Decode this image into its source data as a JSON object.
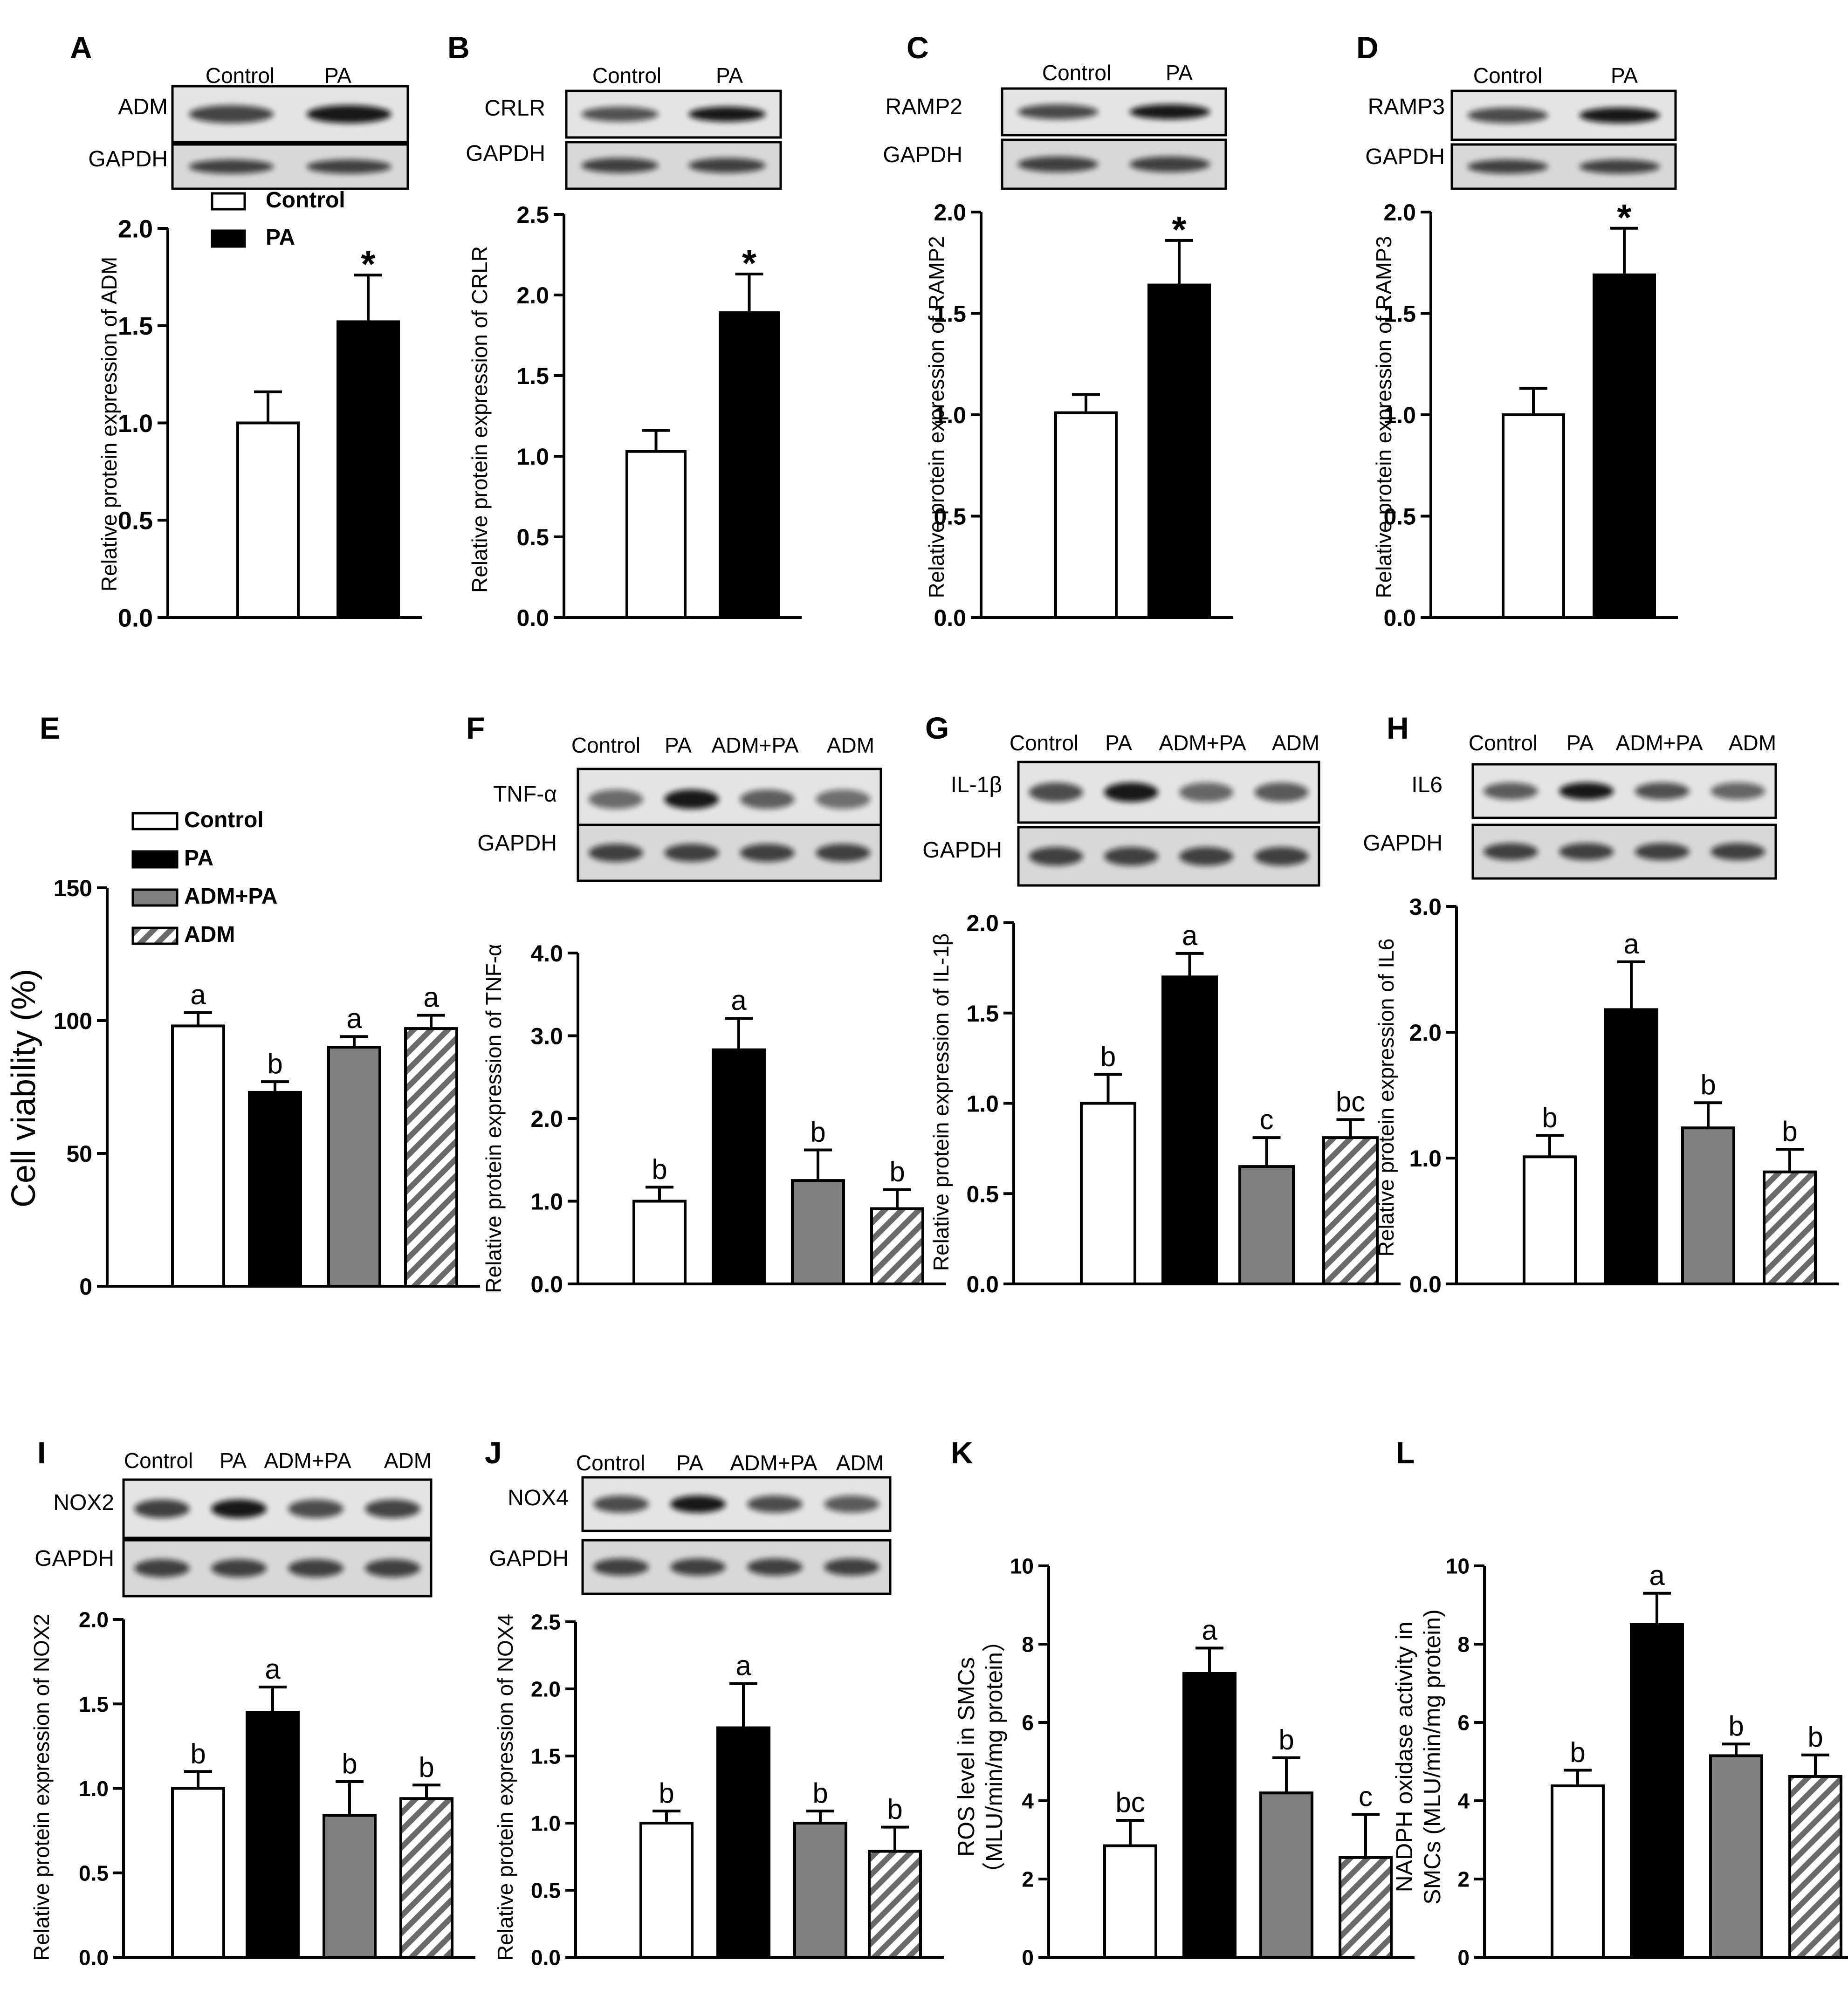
{
  "colors": {
    "control": "#ffffff",
    "pa": "#000000",
    "admpa": "#808080",
    "adm": "hatch",
    "axis": "#000000"
  },
  "chart_data": [
    {
      "panel": "A",
      "type": "bar",
      "categories": [
        "Control",
        "PA"
      ],
      "values": [
        1.0,
        1.52
      ],
      "errors": [
        0.16,
        0.24
      ],
      "letters": [
        "",
        "*"
      ],
      "ylabel": "Relative protein expression of ADM",
      "ylim": [
        0,
        2.0
      ],
      "yticks": [
        "0.0",
        "0.5",
        "1.0",
        "1.5",
        "2.0"
      ],
      "legend": [
        "Control",
        "PA"
      ],
      "blot": {
        "lanes": [
          "Control",
          "PA"
        ],
        "rows": [
          "ADM",
          "GAPDH"
        ]
      }
    },
    {
      "panel": "B",
      "type": "bar",
      "categories": [
        "Control",
        "PA"
      ],
      "values": [
        1.03,
        1.89
      ],
      "errors": [
        0.13,
        0.24
      ],
      "letters": [
        "",
        "*"
      ],
      "ylabel": "Relative protein expression of CRLR",
      "ylim": [
        0,
        2.5
      ],
      "yticks": [
        "0.0",
        "0.5",
        "1.0",
        "1.5",
        "2.0",
        "2.5"
      ],
      "blot": {
        "lanes": [
          "Control",
          "PA"
        ],
        "rows": [
          "CRLR",
          "GAPDH"
        ]
      }
    },
    {
      "panel": "C",
      "type": "bar",
      "categories": [
        "Control",
        "PA"
      ],
      "values": [
        1.01,
        1.64
      ],
      "errors": [
        0.09,
        0.22
      ],
      "letters": [
        "",
        "*"
      ],
      "ylabel": "Relative protein expression of RAMP2",
      "ylim": [
        0,
        2.0
      ],
      "yticks": [
        "0.0",
        "0.5",
        "1.0",
        "1.5",
        "2.0"
      ],
      "blot": {
        "lanes": [
          "Control",
          "PA"
        ],
        "rows": [
          "RAMP2",
          "GAPDH"
        ]
      }
    },
    {
      "panel": "D",
      "type": "bar",
      "categories": [
        "Control",
        "PA"
      ],
      "values": [
        1.0,
        1.69
      ],
      "errors": [
        0.13,
        0.23
      ],
      "letters": [
        "",
        "*"
      ],
      "ylabel": "Relative protein expression of RAMP3",
      "ylim": [
        0,
        2.0
      ],
      "yticks": [
        "0.0",
        "0.5",
        "1.0",
        "1.5",
        "2.0"
      ],
      "blot": {
        "lanes": [
          "Control",
          "PA"
        ],
        "rows": [
          "RAMP3",
          "GAPDH"
        ]
      }
    },
    {
      "panel": "E",
      "type": "bar",
      "categories": [
        "Control",
        "PA",
        "ADM+PA",
        "ADM"
      ],
      "values": [
        98,
        73,
        90,
        97
      ],
      "errors": [
        5,
        4,
        4,
        5
      ],
      "letters": [
        "a",
        "b",
        "a",
        "a"
      ],
      "ylabel": "Cell viability (%)",
      "ylim": [
        0,
        150
      ],
      "yticks": [
        "0",
        "50",
        "100",
        "150"
      ],
      "legend": [
        "Control",
        "PA",
        "ADM+PA",
        "ADM"
      ]
    },
    {
      "panel": "F",
      "type": "bar",
      "categories": [
        "Control",
        "PA",
        "ADM+PA",
        "ADM"
      ],
      "values": [
        1.0,
        2.83,
        1.25,
        0.91
      ],
      "errors": [
        0.17,
        0.38,
        0.37,
        0.23
      ],
      "letters": [
        "b",
        "a",
        "b",
        "b"
      ],
      "ylabel": "Relative protein expression of TNF-α",
      "ylim": [
        0,
        4.0
      ],
      "yticks": [
        "0.0",
        "1.0",
        "2.0",
        "3.0",
        "4.0"
      ],
      "blot": {
        "lanes": [
          "Control",
          "PA",
          "ADM+PA",
          "ADM"
        ],
        "rows": [
          "TNF-α",
          "GAPDH"
        ]
      }
    },
    {
      "panel": "G",
      "type": "bar",
      "categories": [
        "Control",
        "PA",
        "ADM+PA",
        "ADM"
      ],
      "values": [
        1.0,
        1.7,
        0.65,
        0.81
      ],
      "errors": [
        0.16,
        0.13,
        0.16,
        0.1
      ],
      "letters": [
        "b",
        "a",
        "c",
        "bc"
      ],
      "ylabel": "Relative protein expression of IL-1β",
      "ylim": [
        0,
        2.0
      ],
      "yticks": [
        "0.0",
        "0.5",
        "1.0",
        "1.5",
        "2.0"
      ],
      "blot": {
        "lanes": [
          "Control",
          "PA",
          "ADM+PA",
          "ADM"
        ],
        "rows": [
          "IL-1β",
          "GAPDH"
        ]
      }
    },
    {
      "panel": "H",
      "type": "bar",
      "categories": [
        "Control",
        "PA",
        "ADM+PA",
        "ADM"
      ],
      "values": [
        1.01,
        2.18,
        1.24,
        0.89
      ],
      "errors": [
        0.17,
        0.38,
        0.2,
        0.18
      ],
      "letters": [
        "b",
        "a",
        "b",
        "b"
      ],
      "ylabel": "Relative protein expression of IL6",
      "ylim": [
        0,
        3.0
      ],
      "yticks": [
        "0.0",
        "1.0",
        "2.0",
        "3.0"
      ],
      "blot": {
        "lanes": [
          "Control",
          "PA",
          "ADM+PA",
          "ADM"
        ],
        "rows": [
          "IL6",
          "GAPDH"
        ]
      }
    },
    {
      "panel": "I",
      "type": "bar",
      "categories": [
        "Control",
        "PA",
        "ADM+PA",
        "ADM"
      ],
      "values": [
        1.0,
        1.45,
        0.84,
        0.94
      ],
      "errors": [
        0.1,
        0.15,
        0.2,
        0.08
      ],
      "letters": [
        "b",
        "a",
        "b",
        "b"
      ],
      "ylabel": "Relative protein expression of NOX2",
      "ylim": [
        0,
        2.0
      ],
      "yticks": [
        "0.0",
        "0.5",
        "1.0",
        "1.5",
        "2.0"
      ],
      "blot": {
        "lanes": [
          "Control",
          "PA",
          "ADM+PA",
          "ADM"
        ],
        "rows": [
          "NOX2",
          "GAPDH"
        ]
      }
    },
    {
      "panel": "J",
      "type": "bar",
      "categories": [
        "Control",
        "PA",
        "ADM+PA",
        "ADM"
      ],
      "values": [
        1.0,
        1.71,
        1.0,
        0.79
      ],
      "errors": [
        0.09,
        0.33,
        0.09,
        0.18
      ],
      "letters": [
        "b",
        "a",
        "b",
        "b"
      ],
      "ylabel": "Relative protein expression of NOX4",
      "ylim": [
        0,
        2.5
      ],
      "yticks": [
        "0.0",
        "0.5",
        "1.0",
        "1.5",
        "2.0",
        "2.5"
      ],
      "blot": {
        "lanes": [
          "Control",
          "PA",
          "ADM+PA",
          "ADM"
        ],
        "rows": [
          "NOX4",
          "GAPDH"
        ]
      }
    },
    {
      "panel": "K",
      "type": "bar",
      "categories": [
        "Control",
        "PA",
        "ADM+PA",
        "ADM"
      ],
      "values": [
        2.85,
        7.25,
        4.2,
        2.55
      ],
      "errors": [
        0.65,
        0.65,
        0.9,
        1.1
      ],
      "letters": [
        "bc",
        "a",
        "b",
        "c"
      ],
      "ylabel": "ROS level in SMCs",
      "ylabel2": "（MLU/min/mg protein）",
      "ylim": [
        0,
        10
      ],
      "yticks": [
        "0",
        "2",
        "4",
        "6",
        "8",
        "10"
      ]
    },
    {
      "panel": "L",
      "type": "bar",
      "categories": [
        "Control",
        "PA",
        "ADM+PA",
        "ADM"
      ],
      "values": [
        4.38,
        8.5,
        5.15,
        4.62
      ],
      "errors": [
        0.4,
        0.8,
        0.3,
        0.55
      ],
      "letters": [
        "b",
        "a",
        "b",
        "b"
      ],
      "ylabel": "NADPH oxidase activity in",
      "ylabel2": "SMCs (MLU/min/mg protein)",
      "ylim": [
        0,
        10
      ],
      "yticks": [
        "0",
        "2",
        "4",
        "6",
        "8",
        "10"
      ]
    }
  ]
}
